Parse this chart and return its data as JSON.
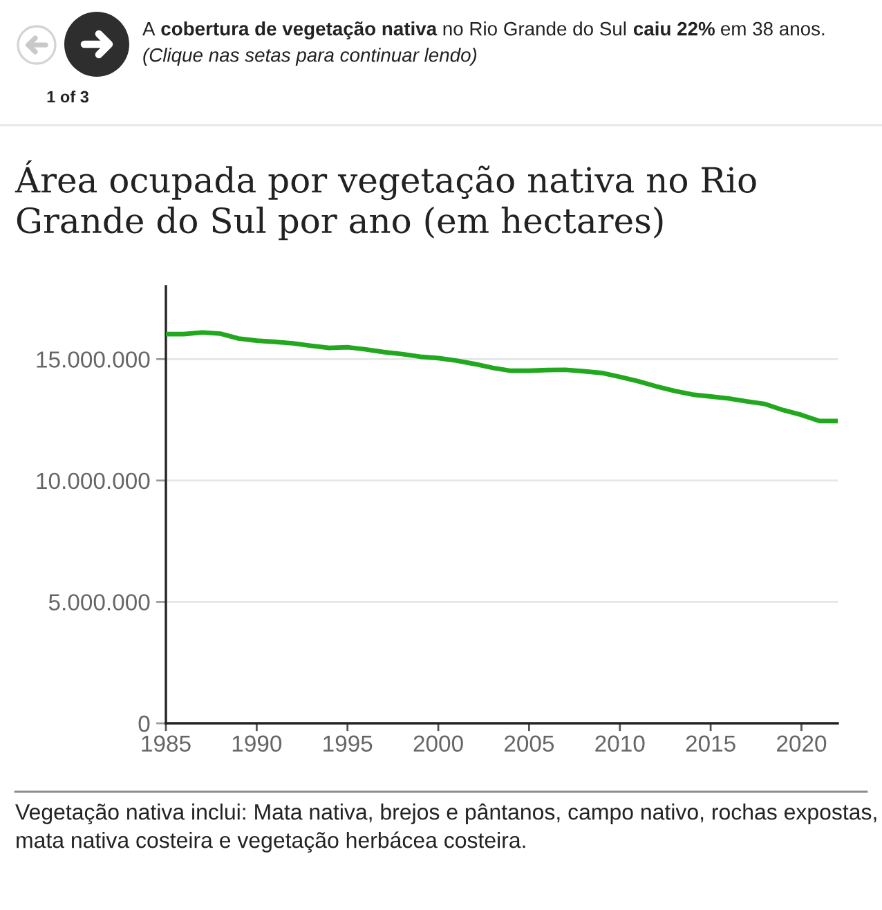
{
  "chart_data": {
    "type": "line",
    "title": "Área ocupada por vegetação nativa no Rio Grande do Sul por ano (em hectares)",
    "x": [
      1985,
      1986,
      1987,
      1988,
      1989,
      1990,
      1991,
      1992,
      1993,
      1994,
      1995,
      1996,
      1997,
      1998,
      1999,
      2000,
      2001,
      2002,
      2003,
      2004,
      2005,
      2006,
      2007,
      2008,
      2009,
      2010,
      2011,
      2012,
      2013,
      2014,
      2015,
      2016,
      2017,
      2018,
      2019,
      2020,
      2021,
      2022
    ],
    "series": [
      {
        "color": "#21a81e",
        "values": [
          16030000,
          16030000,
          16100000,
          16050000,
          15850000,
          15760000,
          15710000,
          15650000,
          15550000,
          15460000,
          15490000,
          15400000,
          15290000,
          15210000,
          15100000,
          15040000,
          14940000,
          14800000,
          14640000,
          14520000,
          14520000,
          14550000,
          14560000,
          14500000,
          14430000,
          14270000,
          14090000,
          13880000,
          13690000,
          13540000,
          13460000,
          13380000,
          13260000,
          13150000,
          12900000,
          12700000,
          12450000,
          12450000
        ]
      }
    ],
    "xlim": [
      1985,
      2022
    ],
    "xticks": [
      1985,
      1990,
      1995,
      2000,
      2005,
      2010,
      2015,
      2020
    ],
    "ylim": [
      0,
      18000000
    ],
    "yticks": [
      0,
      {
        "value": 5000000,
        "label": "5.000.000"
      },
      {
        "value": 10000000,
        "label": "10.000.000"
      },
      {
        "value": 15000000,
        "label": "15.000.000"
      }
    ],
    "grid": "y",
    "line_style": "solid",
    "annotations": [
      "A",
      "cobertura de vegetação nativa",
      "no Rio Grande do Sul",
      "caiu 22%",
      "em 38 anos.",
      "(Clique nas setas para continuar lendo)",
      "1 of 3",
      "Vegetação nativa inclui: Mata nativa, brejos e pântanos, campo nativo, rochas expostas, mata nativa costeira e vegetação herbácea costeira."
    ]
  }
}
